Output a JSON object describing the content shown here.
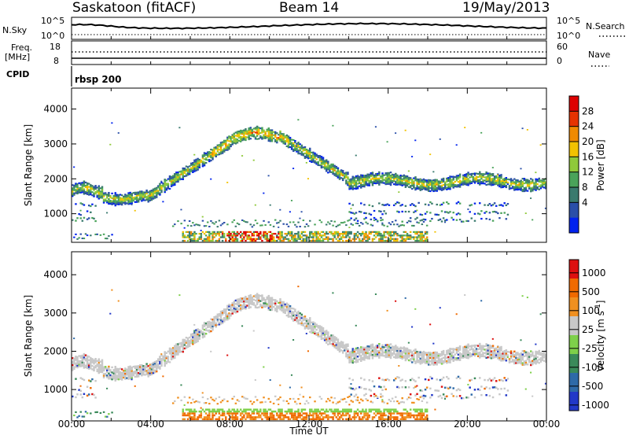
{
  "header": {
    "station": "Saskatoon (fitACF)",
    "beam": "Beam 14",
    "date": "19/May/2013"
  },
  "noise_panel": {
    "left_label": "N.Sky",
    "left_top": "10^5",
    "left_bottom": "10^0",
    "right_top": "10^5",
    "right_bottom": "10^0",
    "right_label": "N.Search"
  },
  "freq_panel": {
    "left_label_1": "Freq.",
    "left_label_2": "[MHz]",
    "left_top": "18",
    "left_bottom": "8",
    "right_top": "60",
    "right_bottom": "0",
    "right_label": "Nave"
  },
  "cpid": {
    "label": "CPID",
    "value": "rbsp 200"
  },
  "chart_data": [
    {
      "type": "heatmap",
      "name": "power",
      "ylabel": "Slant Range [km]",
      "y_ticks": [
        "4000",
        "3000",
        "2000",
        "1000"
      ],
      "x_ticks": [
        "00:00",
        "04:00",
        "08:00",
        "12:00",
        "16:00",
        "20:00",
        "00:00"
      ],
      "colorbar_label": "Power [dB]",
      "colorbar_ticks": [
        "28",
        "24",
        "20",
        "16",
        "12",
        "8",
        "4"
      ],
      "colors": [
        "#0022ee",
        "#2a4fa8",
        "#3a7a6e",
        "#4aa35a",
        "#8fc93a",
        "#f2c200",
        "#f08a00",
        "#e63300",
        "#dd0000"
      ],
      "ylim": [
        180,
        4600
      ]
    },
    {
      "type": "heatmap",
      "name": "velocity",
      "ylabel": "Slant Range [km]",
      "y_ticks": [
        "4000",
        "3000",
        "2000",
        "1000"
      ],
      "x_ticks": [
        "00:00",
        "04:00",
        "08:00",
        "12:00",
        "16:00",
        "20:00",
        "00:00"
      ],
      "xlabel": "Time UT",
      "colorbar_label": "Velocity [m s",
      "colorbar_label_sup": "-1",
      "colorbar_label_end": "]",
      "colorbar_ticks": [
        "1000",
        "500",
        "100",
        "25",
        "-25",
        "-100",
        "-500",
        "-1000"
      ],
      "colors": [
        "#2238c8",
        "#2e6aa8",
        "#3a8a5a",
        "#7ed04a",
        "#c8c8c8",
        "#f09020",
        "#f06a00",
        "#dd1010"
      ],
      "ylim": [
        180,
        4600
      ]
    }
  ]
}
